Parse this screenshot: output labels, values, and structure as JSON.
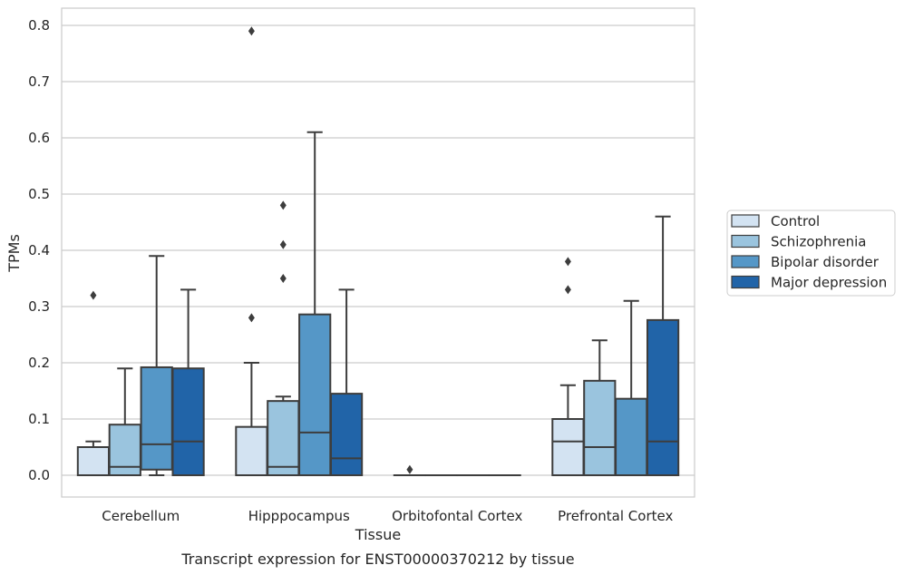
{
  "chart_data": {
    "type": "box",
    "title": "",
    "caption": "Transcript expression for ENST00000370212 by tissue",
    "xlabel": "Tissue",
    "ylabel": "TPMs",
    "ylim": [
      -0.04,
      0.83
    ],
    "yticks": [
      "0.0",
      "0.1",
      "0.2",
      "0.3",
      "0.4",
      "0.5",
      "0.6",
      "0.7",
      "0.8"
    ],
    "ytick_values": [
      0,
      0.1,
      0.2,
      0.3,
      0.4,
      0.5,
      0.6,
      0.7,
      0.8
    ],
    "grid": "horizontal",
    "legend_position": "right",
    "categories": [
      "Cerebellum",
      "Hipppocampus",
      "Orbitofontal Cortex",
      "Prefrontal Cortex"
    ],
    "series": [
      {
        "name": "Control",
        "color": "#d3e3f2",
        "boxes": [
          {
            "min": 0,
            "q1": 0,
            "median": 0,
            "q3": 0.05,
            "max": 0.06,
            "outliers": [
              0.32
            ]
          },
          {
            "min": 0,
            "q1": 0,
            "median": 0,
            "q3": 0.086,
            "max": 0.2,
            "outliers": [
              0.28,
              0.79
            ]
          },
          {
            "min": 0,
            "q1": 0,
            "median": 0,
            "q3": 0,
            "max": 0,
            "outliers": [
              0.01
            ]
          },
          {
            "min": 0,
            "q1": 0,
            "median": 0.06,
            "q3": 0.1,
            "max": 0.16,
            "outliers": [
              0.33,
              0.38
            ]
          }
        ]
      },
      {
        "name": "Schizophrenia",
        "color": "#9ac4de",
        "boxes": [
          {
            "min": 0,
            "q1": 0,
            "median": 0.015,
            "q3": 0.09,
            "max": 0.19,
            "outliers": []
          },
          {
            "min": 0,
            "q1": 0,
            "median": 0.015,
            "q3": 0.132,
            "max": 0.14,
            "outliers": [
              0.35,
              0.41,
              0.48
            ]
          },
          {
            "min": 0,
            "q1": 0,
            "median": 0,
            "q3": 0,
            "max": 0,
            "outliers": []
          },
          {
            "min": 0,
            "q1": 0,
            "median": 0.05,
            "q3": 0.168,
            "max": 0.24,
            "outliers": []
          }
        ]
      },
      {
        "name": "Bipolar disorder",
        "color": "#5597c7",
        "boxes": [
          {
            "min": 0,
            "q1": 0.01,
            "median": 0.055,
            "q3": 0.192,
            "max": 0.39,
            "outliers": []
          },
          {
            "min": 0,
            "q1": 0,
            "median": 0.076,
            "q3": 0.286,
            "max": 0.61,
            "outliers": []
          },
          {
            "min": 0,
            "q1": 0,
            "median": 0,
            "q3": 0,
            "max": 0,
            "outliers": []
          },
          {
            "min": 0,
            "q1": 0,
            "median": 0,
            "q3": 0.136,
            "max": 0.31,
            "outliers": []
          }
        ]
      },
      {
        "name": "Major depression",
        "color": "#2164a8",
        "boxes": [
          {
            "min": 0,
            "q1": 0,
            "median": 0.06,
            "q3": 0.19,
            "max": 0.33,
            "outliers": []
          },
          {
            "min": 0,
            "q1": 0,
            "median": 0.03,
            "q3": 0.145,
            "max": 0.33,
            "outliers": []
          },
          {
            "min": 0,
            "q1": 0,
            "median": 0,
            "q3": 0,
            "max": 0,
            "outliers": []
          },
          {
            "min": 0,
            "q1": 0,
            "median": 0.06,
            "q3": 0.276,
            "max": 0.46,
            "outliers": []
          }
        ]
      }
    ]
  }
}
